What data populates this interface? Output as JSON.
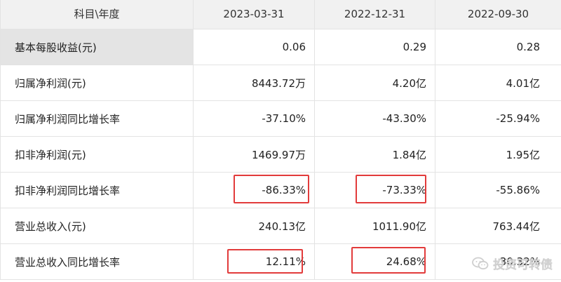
{
  "header": {
    "label": "科目\\年度",
    "dates": [
      "2023-03-31",
      "2022-12-31",
      "2022-09-30"
    ]
  },
  "rows": [
    {
      "label": "基本每股收益(元)",
      "values": [
        "0.06",
        "0.29",
        "0.28"
      ]
    },
    {
      "label": "归属净利润(元)",
      "values": [
        "8443.72万",
        "4.20亿",
        "4.01亿"
      ]
    },
    {
      "label": "归属净利润同比增长率",
      "values": [
        "-37.10%",
        "-43.30%",
        "-25.94%"
      ]
    },
    {
      "label": "扣非净利润(元)",
      "values": [
        "1469.97万",
        "1.84亿",
        "1.95亿"
      ]
    },
    {
      "label": "扣非净利润同比增长率",
      "values": [
        "-86.33%",
        "-73.33%",
        "-55.86%"
      ]
    },
    {
      "label": "营业总收入(元)",
      "values": [
        "240.13亿",
        "1011.90亿",
        "763.44亿"
      ]
    },
    {
      "label": "营业总收入同比增长率",
      "values": [
        "12.11%",
        "24.68%",
        "30.32%"
      ]
    }
  ],
  "watermark": {
    "text": "投资可转债",
    "icon": "wechat-icon"
  },
  "colors": {
    "highlight": "#e23b3b",
    "header_bg": "#f1f1f1",
    "selected_row_bg": "#e4e4e4"
  }
}
